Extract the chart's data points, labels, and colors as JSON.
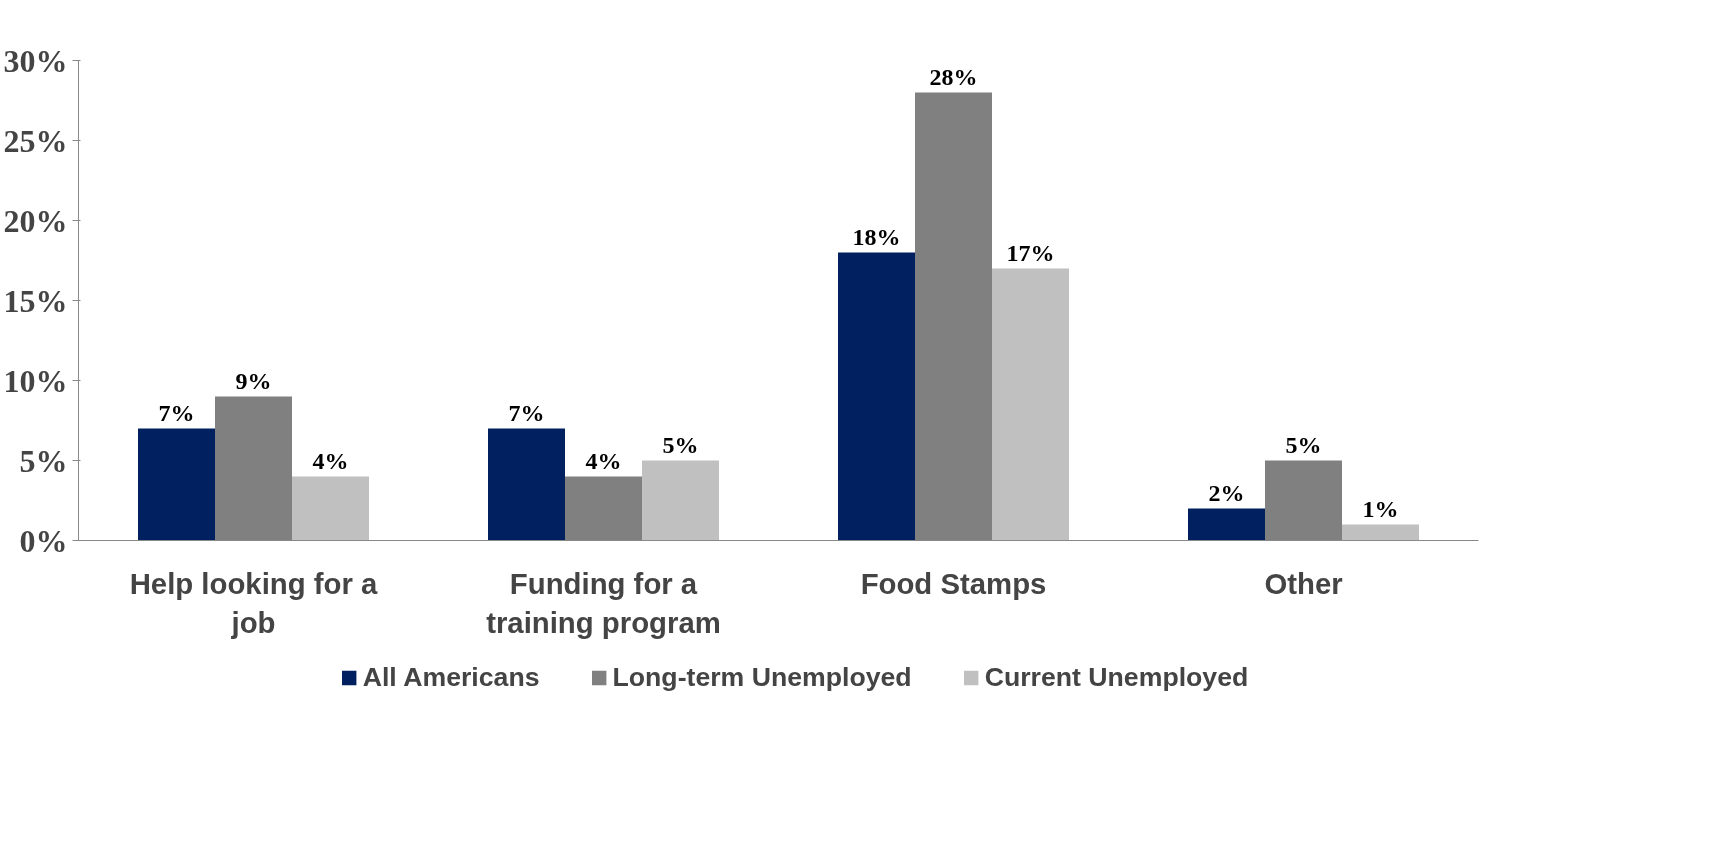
{
  "chart_data": {
    "type": "bar",
    "categories": [
      "Help looking for a job",
      "Funding for a training program",
      "Food Stamps",
      "Other"
    ],
    "series": [
      {
        "name": "All Americans",
        "color": "#002060",
        "values": [
          7,
          7,
          18,
          2
        ],
        "value_labels": [
          "7%",
          "7%",
          "18%",
          "2%"
        ]
      },
      {
        "name": "Long-term Unemployed",
        "color": "#808080",
        "values": [
          9,
          4,
          28,
          5
        ],
        "value_labels": [
          "9%",
          "4%",
          "28%",
          "5%"
        ]
      },
      {
        "name": "Current Unemployed",
        "color": "#c0c0c0",
        "values": [
          4,
          5,
          17,
          1
        ],
        "value_labels": [
          "4%",
          "5%",
          "17%",
          "1%"
        ]
      }
    ],
    "ylim": [
      0,
      30
    ],
    "yticks": [
      {
        "value": 0,
        "label": "0%"
      },
      {
        "value": 5,
        "label": "5%"
      },
      {
        "value": 10,
        "label": "10%"
      },
      {
        "value": 15,
        "label": "15%"
      },
      {
        "value": 20,
        "label": "20%"
      },
      {
        "value": 25,
        "label": "25%"
      },
      {
        "value": 30,
        "label": "30%"
      }
    ],
    "grid": false,
    "legend": "bottom"
  }
}
